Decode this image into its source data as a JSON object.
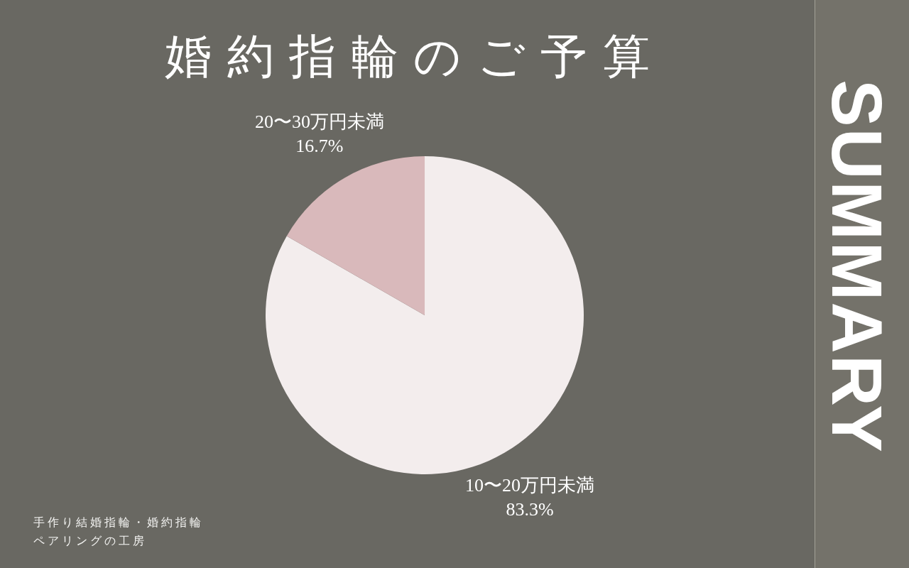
{
  "chart_data": {
    "type": "pie",
    "title": "婚約指輪のご予算",
    "categories": [
      "10〜20万円未満",
      "20〜30万円未満"
    ],
    "values": [
      83.3,
      16.7
    ],
    "colors": [
      "#f3eded",
      "#d9b9bb"
    ],
    "value_labels": [
      "83.3%",
      "16.7%"
    ],
    "annotations": [
      "SUMMARY",
      "手作り結婚指輪・婚約指輪",
      "ペアリングの工房"
    ]
  }
}
